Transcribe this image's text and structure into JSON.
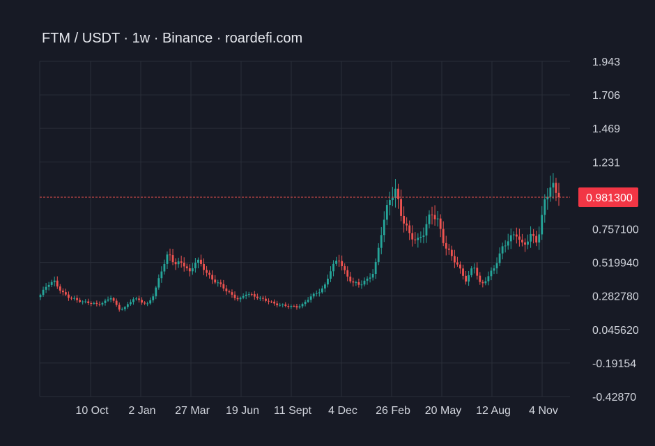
{
  "title": "FTM / USDT · 1w · Binance · roardefi.com",
  "colors": {
    "background": "#171a25",
    "up": "#26a69a",
    "down": "#ef5350",
    "grid": "#2a2e39",
    "price_line": "#ef5350",
    "price_tag_bg": "#f23645"
  },
  "chart_data": {
    "type": "candlestick",
    "pair": "FTM / USDT",
    "interval": "1w",
    "exchange": "Binance",
    "source": "roardefi.com",
    "y_ticks": [
      "1.943",
      "1.706",
      "1.469",
      "1.231",
      "0.757100",
      "0.519940",
      "0.282780",
      "0.045620",
      "-0.19154",
      "-0.42870"
    ],
    "x_ticks": [
      "10 Oct",
      "2 Jan",
      "27 Mar",
      "19 Jun",
      "11 Sept",
      "4 Dec",
      "26 Feb",
      "20 May",
      "12 Aug",
      "4 Nov"
    ],
    "ylim": [
      -0.4287,
      1.943
    ],
    "grid": true,
    "last_price": "0.981300",
    "last_price_value": 0.9813,
    "series_approx": [
      0.29,
      0.36,
      0.38,
      0.31,
      0.28,
      0.26,
      0.24,
      0.23,
      0.22,
      0.24,
      0.28,
      0.19,
      0.2,
      0.26,
      0.25,
      0.22,
      0.3,
      0.46,
      0.58,
      0.5,
      0.52,
      0.45,
      0.55,
      0.48,
      0.4,
      0.37,
      0.33,
      0.29,
      0.26,
      0.3,
      0.28,
      0.26,
      0.25,
      0.23,
      0.22,
      0.21,
      0.2,
      0.22,
      0.28,
      0.31,
      0.35,
      0.48,
      0.54,
      0.43,
      0.38,
      0.37,
      0.4,
      0.45,
      0.72,
      0.95,
      1.04,
      0.84,
      0.72,
      0.66,
      0.72,
      0.88,
      0.82,
      0.64,
      0.56,
      0.47,
      0.38,
      0.51,
      0.36,
      0.42,
      0.49,
      0.61,
      0.68,
      0.73,
      0.64,
      0.72,
      0.66,
      0.94,
      1.07,
      0.9813
    ]
  }
}
